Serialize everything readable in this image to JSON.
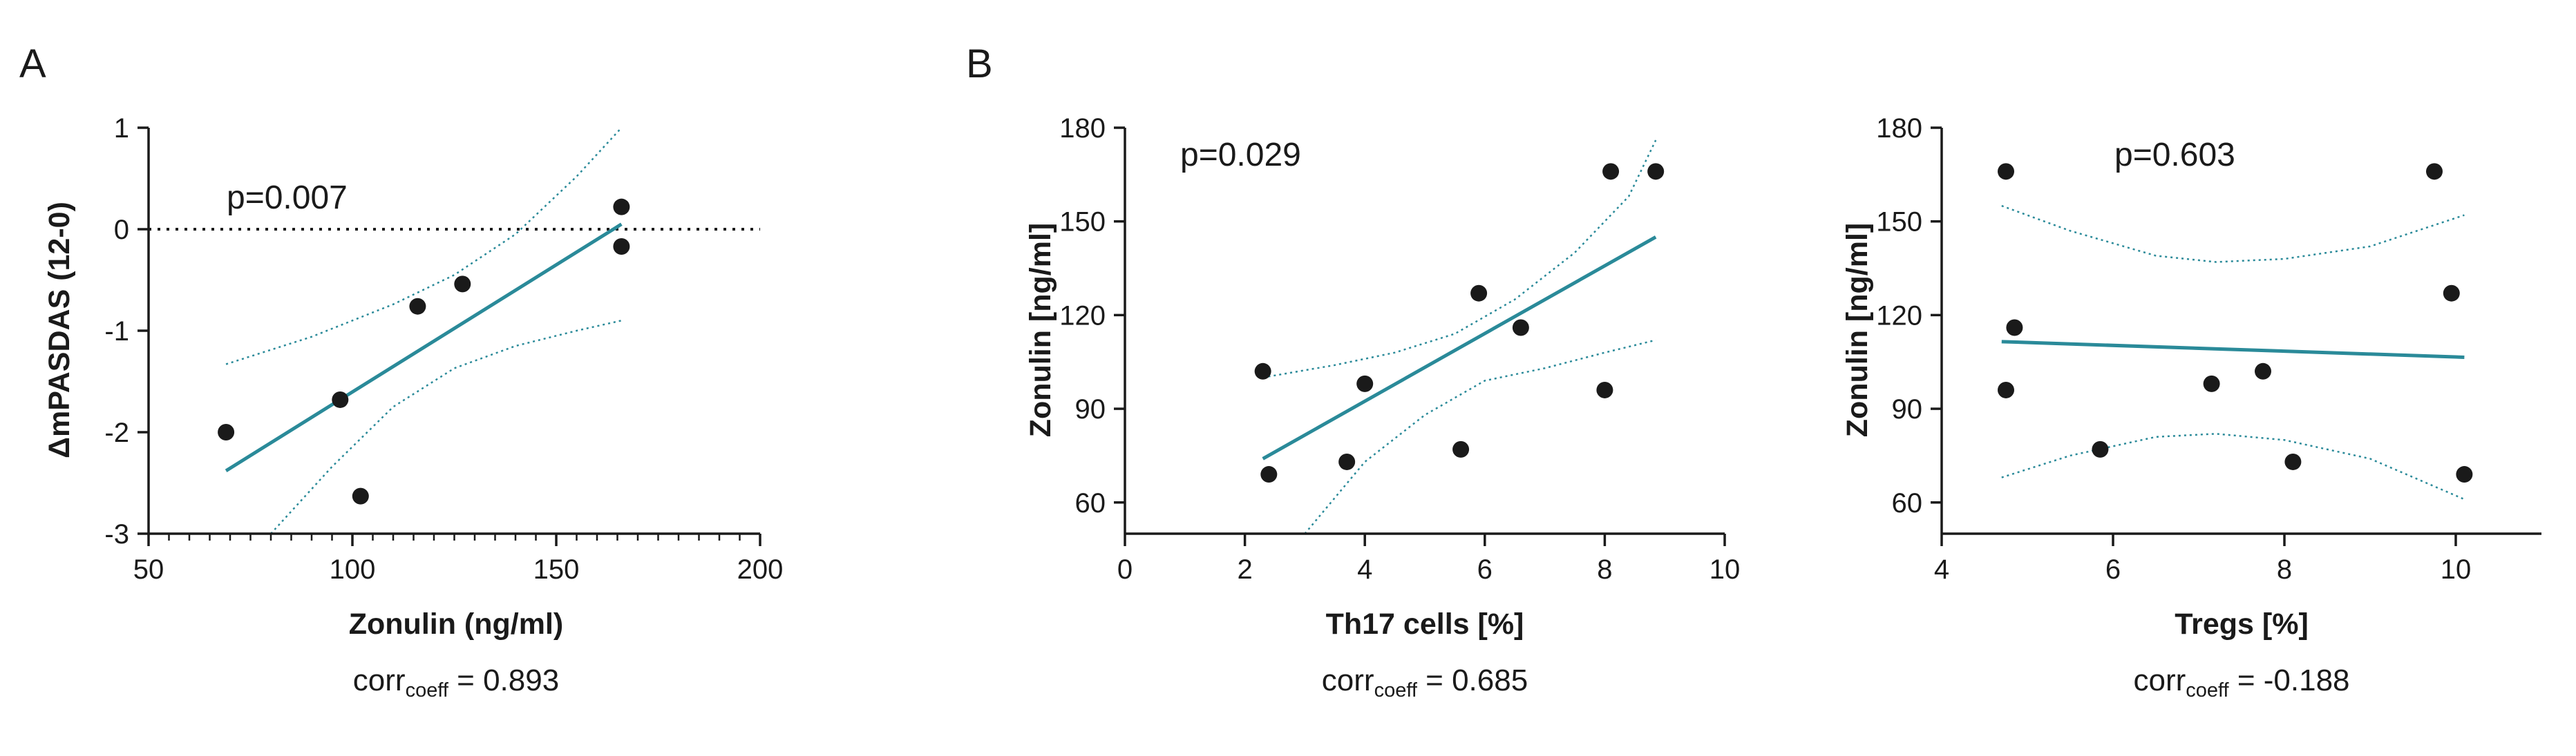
{
  "colors": {
    "ink": "#1a1a1a",
    "fit_line": "#2a8a99",
    "ci_band": "#2a8a99",
    "background": "#ffffff"
  },
  "panel_letters": [
    "A",
    "B"
  ],
  "chart_data": [
    {
      "id": "A",
      "type": "scatter",
      "panel_letter": "A",
      "xlabel": "Zonulin (ng/ml)",
      "ylabel": "ΔmPASDAS (12-0)",
      "xlim": [
        50,
        200
      ],
      "ylim": [
        -3,
        1
      ],
      "xticks": [
        50,
        100,
        150,
        200
      ],
      "yticks": [
        -3,
        -2,
        -1,
        0,
        1
      ],
      "x_minor_ticks": true,
      "grid": false,
      "reference_line_y": 0,
      "annotation": "p=0.007",
      "corr_text": {
        "prefix": "corr",
        "sub": "coeff",
        "value": " = 0.893"
      },
      "points": [
        {
          "x": 69,
          "y": -2.0
        },
        {
          "x": 97,
          "y": -1.68
        },
        {
          "x": 102,
          "y": -2.63
        },
        {
          "x": 116,
          "y": -0.76
        },
        {
          "x": 127,
          "y": -0.54
        },
        {
          "x": 166,
          "y": 0.22
        },
        {
          "x": 166,
          "y": -0.17
        }
      ],
      "fit": {
        "x": [
          69,
          166
        ],
        "y": [
          -2.38,
          0.05
        ]
      },
      "ci_upper": [
        [
          69,
          -1.33
        ],
        [
          90,
          -1.06
        ],
        [
          110,
          -0.74
        ],
        [
          125,
          -0.45
        ],
        [
          140,
          -0.05
        ],
        [
          155,
          0.52
        ],
        [
          166,
          1.0
        ]
      ],
      "ci_lower": [
        [
          80,
          -3.0
        ],
        [
          95,
          -2.34
        ],
        [
          110,
          -1.75
        ],
        [
          125,
          -1.37
        ],
        [
          140,
          -1.15
        ],
        [
          155,
          -1.0
        ],
        [
          166,
          -0.9
        ]
      ]
    },
    {
      "id": "B1",
      "type": "scatter",
      "panel_letter": "B",
      "xlabel": "Th17 cells [%]",
      "ylabel": "Zonulin [ng/ml]",
      "xlim": [
        0,
        10
      ],
      "ylim": [
        50,
        180
      ],
      "xticks": [
        0,
        2,
        4,
        6,
        8,
        10
      ],
      "yticks": [
        60,
        90,
        120,
        150,
        180
      ],
      "x_minor_ticks": false,
      "grid": false,
      "annotation": "p=0.029",
      "corr_text": {
        "prefix": "corr",
        "sub": "coeff",
        "value": " = 0.685"
      },
      "points": [
        {
          "x": 2.3,
          "y": 102
        },
        {
          "x": 2.4,
          "y": 69
        },
        {
          "x": 3.7,
          "y": 73
        },
        {
          "x": 4.0,
          "y": 98
        },
        {
          "x": 5.6,
          "y": 77
        },
        {
          "x": 5.9,
          "y": 127
        },
        {
          "x": 6.6,
          "y": 116
        },
        {
          "x": 8.0,
          "y": 96
        },
        {
          "x": 8.1,
          "y": 166
        },
        {
          "x": 8.85,
          "y": 166
        }
      ],
      "fit": {
        "x": [
          2.3,
          8.85
        ],
        "y": [
          74,
          145
        ]
      },
      "ci_upper": [
        [
          2.3,
          100
        ],
        [
          3.5,
          104
        ],
        [
          4.5,
          108
        ],
        [
          5.5,
          114
        ],
        [
          6.5,
          125
        ],
        [
          7.5,
          140
        ],
        [
          8.4,
          158
        ],
        [
          8.85,
          176
        ]
      ],
      "ci_lower": [
        [
          3.0,
          50
        ],
        [
          4.0,
          73
        ],
        [
          5.0,
          88
        ],
        [
          6.0,
          99
        ],
        [
          7.0,
          103
        ],
        [
          8.0,
          108
        ],
        [
          8.85,
          112
        ]
      ]
    },
    {
      "id": "B2",
      "type": "scatter",
      "panel_letter": "",
      "xlabel": "Tregs [%]",
      "ylabel": "Zonulin [ng/ml]",
      "xlim": [
        4,
        11
      ],
      "ylim": [
        50,
        180
      ],
      "xticks": [
        4,
        6,
        8,
        10
      ],
      "yticks": [
        60,
        90,
        120,
        150,
        180
      ],
      "x_minor_ticks": false,
      "grid": false,
      "annotation": "p=0.603",
      "corr_text": {
        "prefix": "corr",
        "sub": "coeff",
        "value": " = -0.188"
      },
      "points": [
        {
          "x": 4.75,
          "y": 166
        },
        {
          "x": 4.85,
          "y": 116
        },
        {
          "x": 4.75,
          "y": 96
        },
        {
          "x": 5.85,
          "y": 77
        },
        {
          "x": 7.15,
          "y": 98
        },
        {
          "x": 7.75,
          "y": 102
        },
        {
          "x": 8.1,
          "y": 73
        },
        {
          "x": 9.75,
          "y": 166
        },
        {
          "x": 9.95,
          "y": 127
        },
        {
          "x": 10.1,
          "y": 69
        }
      ],
      "fit": {
        "x": [
          4.7,
          10.1
        ],
        "y": [
          111.5,
          106.5
        ]
      },
      "ci_upper": [
        [
          4.7,
          155
        ],
        [
          5.5,
          147
        ],
        [
          6.5,
          139
        ],
        [
          7.2,
          137
        ],
        [
          8.0,
          138
        ],
        [
          9.0,
          142
        ],
        [
          10.1,
          152
        ]
      ],
      "ci_lower": [
        [
          4.7,
          68
        ],
        [
          5.5,
          75
        ],
        [
          6.5,
          81
        ],
        [
          7.2,
          82
        ],
        [
          8.0,
          80
        ],
        [
          9.0,
          74
        ],
        [
          10.1,
          61
        ]
      ]
    }
  ]
}
